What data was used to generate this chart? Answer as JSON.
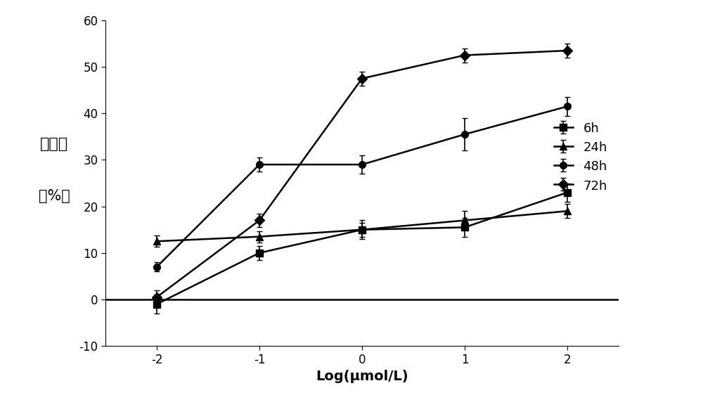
{
  "x": [
    -2,
    -1,
    0,
    1,
    2
  ],
  "series": {
    "6h": {
      "y": [
        -1.0,
        10.0,
        15.0,
        15.5,
        23.0
      ],
      "yerr": [
        2.0,
        1.5,
        2.0,
        2.0,
        2.0
      ],
      "marker": "s",
      "label": "6h"
    },
    "24h": {
      "y": [
        12.5,
        13.5,
        15.0,
        17.0,
        19.0
      ],
      "yerr": [
        1.2,
        1.2,
        1.5,
        2.0,
        1.5
      ],
      "marker": "^",
      "label": "24h"
    },
    "48h": {
      "y": [
        7.0,
        29.0,
        29.0,
        35.5,
        41.5
      ],
      "yerr": [
        1.0,
        1.5,
        2.0,
        3.5,
        2.0
      ],
      "marker": "o",
      "label": "48h"
    },
    "72h": {
      "y": [
        0.5,
        17.0,
        47.5,
        52.5,
        53.5
      ],
      "yerr": [
        1.5,
        1.5,
        1.5,
        1.5,
        1.5
      ],
      "marker": "D",
      "label": "72h"
    }
  },
  "xlabel": "Log(μmol/L)",
  "ylabel_line1": "抑制率",
  "ylabel_line2": "（%）",
  "xlim": [
    -2.5,
    2.5
  ],
  "ylim": [
    -10,
    60
  ],
  "yticks": [
    -10,
    0,
    10,
    20,
    30,
    40,
    50,
    60
  ],
  "xticks": [
    -2,
    -1,
    0,
    1,
    2
  ],
  "xtick_labels": [
    "-2",
    "-1",
    "0",
    "1",
    "2"
  ],
  "color": "#000000",
  "linewidth": 1.8,
  "markersize": 7,
  "capsize": 3,
  "legend_fontsize": 13,
  "axis_fontsize": 14,
  "tick_fontsize": 12
}
